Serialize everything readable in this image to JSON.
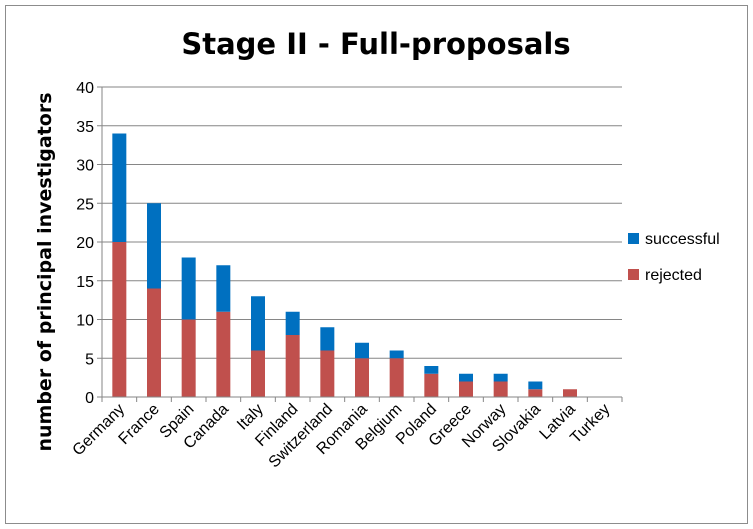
{
  "chart_data": {
    "type": "bar",
    "stacked": true,
    "title": "Stage II - Full-proposals",
    "xlabel": "",
    "ylabel": "number of principal investigators",
    "ylim": [
      0,
      40
    ],
    "yticks": [
      0,
      5,
      10,
      15,
      20,
      25,
      30,
      35,
      40
    ],
    "grid": true,
    "legend": "right",
    "categories": [
      "Germany",
      "France",
      "Spain",
      "Canada",
      "Italy",
      "Finland",
      "Switzerland",
      "Romania",
      "Belgium",
      "Poland",
      "Greece",
      "Norway",
      "Slovakia",
      "Latvia",
      "Turkey"
    ],
    "series": [
      {
        "name": "rejected",
        "color": "#c0504d",
        "values": [
          20,
          14,
          10,
          11,
          6,
          8,
          6,
          5,
          5,
          3,
          2,
          2,
          1,
          1,
          0
        ]
      },
      {
        "name": "successful",
        "color": "#0070c0",
        "values": [
          14,
          11,
          8,
          6,
          7,
          3,
          3,
          2,
          1,
          1,
          1,
          1,
          1,
          0,
          0
        ]
      }
    ],
    "legend_order": [
      "successful",
      "rejected"
    ]
  }
}
